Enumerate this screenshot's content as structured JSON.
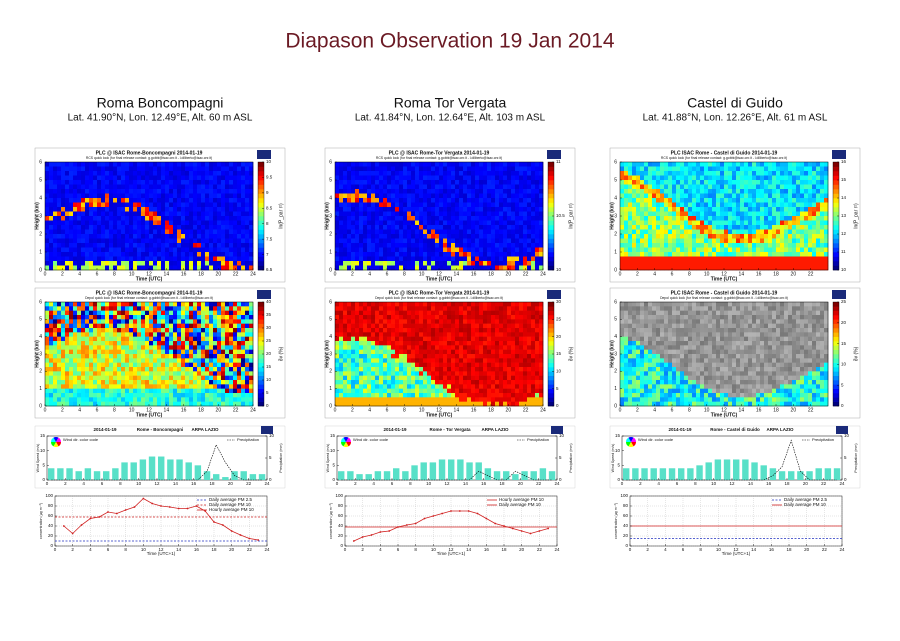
{
  "title": "Diapason Observation 19 Jan 2014",
  "stations": [
    {
      "name": "Roma Boncompagni",
      "coords": "Lat. 41.90°N, Lon. 12.49°E, Alt. 60 m ASL",
      "rcs": {
        "title": "PLC @ ISAC Rome-Boncompagni 2014-01-19",
        "subtitle": "RCS quick look (for final release contact: g.gobbi@isac.cnr.it - l.diliberto@isac.cnr.it)",
        "ylabel": "Height (km)",
        "xlabel": "Time (UTC)",
        "xlim": [
          0,
          24
        ],
        "xticks": [
          0,
          2,
          4,
          6,
          8,
          10,
          12,
          14,
          16,
          18,
          20,
          22,
          24
        ],
        "ylim": [
          0,
          6
        ],
        "yticks": [
          0,
          1,
          2,
          3,
          4,
          5,
          6
        ],
        "cbar_label": "ln(P_par r²)",
        "cbar_lim": [
          6.5,
          10
        ],
        "cbar_ticks": [
          6.5,
          7,
          7.5,
          8,
          8.5,
          9,
          9.5,
          10
        ]
      },
      "depol": {
        "title": "PLC @ ISAC Rome-Boncompagni 2014-01-19",
        "subtitle": "Depol quick look (for final release contact: g.gobbi@isac.cnr.it - l.diliberto@isac.cnr.it)",
        "ylabel": "Height (km)",
        "xlabel": "Time (UTC)",
        "xlim": [
          0,
          24
        ],
        "xticks": [
          0,
          2,
          4,
          6,
          8,
          10,
          12,
          14,
          16,
          18,
          20,
          22,
          24
        ],
        "ylim": [
          0,
          6
        ],
        "yticks": [
          0,
          1,
          2,
          3,
          4,
          5,
          6
        ],
        "cbar_label": "δv (%)",
        "cbar_lim": [
          0,
          40
        ],
        "cbar_ticks": [
          0,
          5,
          10,
          15,
          20,
          25,
          30,
          35,
          40
        ]
      },
      "wind": {
        "date": "2014-01-19",
        "site": "Rome - Boncompagni",
        "source": "ARPA LAZIO",
        "legend_dir": "Wind dir. color code",
        "precip_name": "Precipitation",
        "ylabel": "Wind Speed (m/s)",
        "y2label": "Precipitation (mm)",
        "xlim": [
          0,
          24
        ],
        "xticks": [
          0,
          2,
          4,
          6,
          8,
          10,
          12,
          14,
          16,
          18,
          20,
          22,
          24
        ],
        "ylim": [
          0,
          15
        ],
        "yticks": [
          0,
          5,
          10,
          15
        ],
        "y2lim": [
          0,
          10
        ],
        "y2ticks": [
          0,
          5,
          10
        ],
        "color": "#58e0c8",
        "x": [
          0,
          1,
          2,
          3,
          4,
          5,
          6,
          7,
          8,
          9,
          10,
          11,
          12,
          13,
          14,
          15,
          16,
          17,
          18,
          19,
          20,
          21,
          22,
          23
        ],
        "speed": [
          4,
          4,
          4,
          3,
          4,
          3,
          3,
          4,
          6,
          6,
          7,
          8,
          8,
          7,
          7,
          6,
          5,
          3,
          2,
          1,
          3,
          3,
          2,
          2
        ],
        "precip": [
          0,
          0,
          0,
          0,
          0,
          0,
          0,
          0,
          0,
          0,
          0,
          0,
          0,
          0,
          0,
          0,
          0,
          2,
          8,
          4,
          1,
          0,
          0,
          0
        ]
      },
      "pm": {
        "ylabel": "concentration (µg m⁻³)",
        "xlabel": "Time (UTC+1)",
        "xlim": [
          0,
          24
        ],
        "xticks": [
          0,
          2,
          4,
          6,
          8,
          10,
          12,
          14,
          16,
          18,
          20,
          22,
          24
        ],
        "ylim": [
          0,
          100
        ],
        "yticks": [
          0,
          20,
          40,
          60,
          80,
          100
        ],
        "series": [
          {
            "name": "Daily average PM 2.5",
            "color": "#2030c0",
            "dash": true,
            "markers": false,
            "x": [
              0,
              24
            ],
            "values": [
              10,
              10
            ]
          },
          {
            "name": "Daily average PM 10",
            "color": "#d02020",
            "dash": true,
            "markers": false,
            "x": [
              0,
              24
            ],
            "values": [
              58,
              58
            ]
          },
          {
            "name": "Hourly average PM 10",
            "color": "#d02020",
            "dash": false,
            "markers": true,
            "x": [
              1,
              2,
              3,
              4,
              5,
              6,
              7,
              8,
              9,
              10,
              11,
              12,
              13,
              14,
              15,
              16,
              17,
              18,
              19,
              20,
              21,
              22,
              23
            ],
            "values": [
              40,
              25,
              42,
              55,
              58,
              68,
              65,
              72,
              78,
              95,
              85,
              80,
              78,
              75,
              75,
              80,
              70,
              48,
              42,
              30,
              22,
              15,
              12
            ]
          }
        ]
      }
    },
    {
      "name": "Roma Tor Vergata",
      "coords": "Lat. 41.84°N, Lon. 12.64°E, Alt. 103 m ASL",
      "rcs": {
        "title": "PLC @ ISAC Rome-Tor Vergata 2014-01-19",
        "subtitle": "RCS quick look (for final release contact: g.gobbi@isac.cnr.it - l.diliberto@isac.cnr.it)",
        "ylabel": "Height (km)",
        "xlabel": "Time (UTC)",
        "xlim": [
          0,
          24
        ],
        "xticks": [
          0,
          2,
          4,
          6,
          8,
          10,
          12,
          14,
          16,
          18,
          20,
          22,
          24
        ],
        "ylim": [
          0,
          6
        ],
        "yticks": [
          0,
          1,
          2,
          3,
          4,
          5,
          6
        ],
        "cbar_label": "ln(P_par r²)",
        "cbar_lim": [
          10,
          11
        ],
        "cbar_ticks": [
          10,
          10.5,
          11
        ]
      },
      "depol": {
        "title": "PLC @ ISAC Rome-Tor Vergata 2014-01-19",
        "subtitle": "Depol quick look (for final release contact: g.gobbi@isac.cnr.it - l.diliberto@isac.cnr.it)",
        "ylabel": "Height (km)",
        "xlabel": "Time (UTC)",
        "xlim": [
          0,
          24
        ],
        "xticks": [
          0,
          2,
          4,
          6,
          8,
          10,
          12,
          14,
          16,
          18,
          20,
          22,
          24
        ],
        "ylim": [
          0,
          6
        ],
        "yticks": [
          0,
          1,
          2,
          3,
          4,
          5,
          6
        ],
        "cbar_label": "δv (%)",
        "cbar_lim": [
          0,
          30
        ],
        "cbar_ticks": [
          0,
          5,
          10,
          15,
          20,
          25,
          30
        ]
      },
      "wind": {
        "date": "2014-01-19",
        "site": "Rome - Tor Vergata",
        "source": "ARPA LAZIO",
        "legend_dir": "Wind dir. color code",
        "precip_name": "Precipitation",
        "ylabel": "Wind Speed (m/s)",
        "y2label": "Precipitation (mm)",
        "xlim": [
          0,
          24
        ],
        "xticks": [
          0,
          2,
          4,
          6,
          8,
          10,
          12,
          14,
          16,
          18,
          20,
          22,
          24
        ],
        "ylim": [
          0,
          15
        ],
        "yticks": [
          0,
          5,
          10,
          15
        ],
        "y2lim": [
          0,
          10
        ],
        "y2ticks": [
          0,
          5,
          10
        ],
        "color": "#58e0c8",
        "x": [
          0,
          1,
          2,
          3,
          4,
          5,
          6,
          7,
          8,
          9,
          10,
          11,
          12,
          13,
          14,
          15,
          16,
          17,
          18,
          19,
          20,
          21,
          22,
          23
        ],
        "speed": [
          3,
          3,
          2,
          2,
          3,
          3,
          4,
          3,
          5,
          6,
          6,
          7,
          7,
          7,
          6,
          6,
          4,
          3,
          3,
          2,
          3,
          3,
          4,
          3
        ],
        "precip": [
          0,
          0,
          0,
          0,
          0,
          0,
          0,
          0,
          0,
          0,
          0,
          0,
          0,
          0,
          0,
          2,
          1,
          0,
          0,
          2,
          1,
          0,
          0,
          0
        ]
      },
      "pm": {
        "ylabel": "concentration (µg m⁻³)",
        "xlabel": "Time (UTC+1)",
        "xlim": [
          0,
          24
        ],
        "xticks": [
          0,
          2,
          4,
          6,
          8,
          10,
          12,
          14,
          16,
          18,
          20,
          22,
          24
        ],
        "ylim": [
          0,
          100
        ],
        "yticks": [
          0,
          20,
          40,
          60,
          80,
          100
        ],
        "series": [
          {
            "name": "Hourly average PM 10",
            "color": "#d02020",
            "dash": false,
            "markers": true,
            "x": [
              1,
              2,
              3,
              4,
              5,
              6,
              7,
              8,
              9,
              10,
              11,
              12,
              13,
              14,
              15,
              16,
              17,
              18,
              19,
              20,
              21,
              22,
              23
            ],
            "values": [
              10,
              18,
              22,
              28,
              30,
              38,
              42,
              45,
              55,
              60,
              65,
              70,
              70,
              70,
              65,
              55,
              45,
              40,
              35,
              30,
              25,
              30,
              35
            ]
          },
          {
            "name": "Daily average PM 10",
            "color": "#d02020",
            "dash": false,
            "markers": false,
            "x": [
              0,
              24
            ],
            "values": [
              38,
              38
            ]
          }
        ]
      }
    },
    {
      "name": "Castel di Guido",
      "coords": "Lat. 41.88°N, Lon. 12.26°E, Alt. 61 m ASL",
      "rcs": {
        "title": "PLC ISAC Rome - Castel di Guido 2014-01-19",
        "subtitle": "RCS quick look (for final release contact: g.gobbi@isac.cnr.it - l.diliberto@isac.cnr.it)",
        "ylabel": "Height (km)",
        "xlabel": "Time (UTC)",
        "xlim": [
          0,
          24
        ],
        "xticks": [
          0,
          2,
          4,
          6,
          8,
          10,
          12,
          14,
          16,
          18,
          20,
          22
        ],
        "ylim": [
          0,
          6
        ],
        "yticks": [
          0,
          1,
          2,
          3,
          4,
          5,
          6
        ],
        "cbar_label": "ln(P_par r²)",
        "cbar_lim": [
          10,
          16
        ],
        "cbar_ticks": [
          10,
          11,
          12,
          13,
          14,
          15,
          16
        ]
      },
      "depol": {
        "title": "PLC ISAC Rome - Castel di Guido 2014-01-19",
        "subtitle": "Depol quick look (for final release contact: g.gobbi@isac.cnr.it - l.diliberto@isac.cnr.it)",
        "ylabel": "Height (km)",
        "xlabel": "Time (UTC)",
        "xlim": [
          0,
          24
        ],
        "xticks": [
          0,
          2,
          4,
          6,
          8,
          10,
          12,
          14,
          16,
          18,
          20,
          22
        ],
        "ylim": [
          0,
          6
        ],
        "yticks": [
          0,
          1,
          2,
          3,
          4,
          5,
          6
        ],
        "cbar_label": "δv (%)",
        "cbar_lim": [
          0,
          25
        ],
        "cbar_ticks": [
          0,
          5,
          10,
          15,
          20,
          25
        ]
      },
      "wind": {
        "date": "2014-01-19",
        "site": "Rome - Castel di Guido",
        "source": "ARPA LAZIO",
        "legend_dir": "Wind dir. color code",
        "precip_name": "Precipitation",
        "ylabel": "Wind Speed (m/s)",
        "y2label": "Precipitation (mm)",
        "xlim": [
          0,
          24
        ],
        "xticks": [
          0,
          2,
          4,
          6,
          8,
          10,
          12,
          14,
          16,
          18,
          20,
          22,
          24
        ],
        "ylim": [
          0,
          15
        ],
        "yticks": [
          0,
          5,
          10,
          15
        ],
        "y2lim": [
          0,
          10
        ],
        "y2ticks": [
          0,
          5,
          10
        ],
        "color": "#58e0c8",
        "x": [
          0,
          1,
          2,
          3,
          4,
          5,
          6,
          7,
          8,
          9,
          10,
          11,
          12,
          13,
          14,
          15,
          16,
          17,
          18,
          19,
          20,
          21,
          22,
          23
        ],
        "speed": [
          4,
          4,
          4,
          4,
          4,
          4,
          4,
          4,
          5,
          6,
          7,
          7,
          7,
          7,
          6,
          5,
          4,
          3,
          3,
          3,
          3,
          4,
          4,
          4
        ],
        "precip": [
          0,
          0,
          0,
          0,
          0,
          0,
          0,
          0,
          0,
          0,
          0,
          0,
          0,
          0,
          0,
          0,
          1,
          3,
          9,
          2,
          0,
          0,
          0,
          0
        ]
      },
      "pm": {
        "ylabel": "concentration (µg m⁻³)",
        "xlabel": "Time (UTC+1)",
        "xlim": [
          0,
          24
        ],
        "xticks": [
          0,
          2,
          4,
          6,
          8,
          10,
          12,
          14,
          16,
          18,
          20,
          22,
          24
        ],
        "ylim": [
          0,
          100
        ],
        "yticks": [
          0,
          20,
          40,
          60,
          80,
          100
        ],
        "series": [
          {
            "name": "Daily average PM 2.5",
            "color": "#2030c0",
            "dash": true,
            "markers": false,
            "x": [
              0,
              24
            ],
            "values": [
              15,
              15
            ]
          },
          {
            "name": "Daily average PM 10",
            "color": "#d02020",
            "dash": false,
            "markers": false,
            "x": [
              0,
              24
            ],
            "values": [
              40,
              40
            ]
          }
        ]
      }
    }
  ]
}
